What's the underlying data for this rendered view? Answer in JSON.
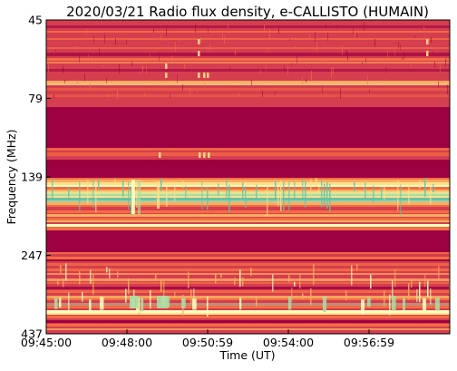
{
  "chart_data": {
    "type": "heatmap",
    "title": "2020/03/21  Radio flux density, e-CALLISTO (HUMAIN)",
    "xlabel": "Time (UT)",
    "ylabel": "Frequency (MHz)",
    "x_ticks": [
      "09:45:00",
      "09:48:00",
      "09:50:59",
      "09:54:00",
      "09:56:59"
    ],
    "y_ticks": [
      "45",
      "79",
      "139",
      "247",
      "437"
    ],
    "colormap": "Spectral",
    "colors": {
      "background_low": "#9e0142",
      "mid_low": "#d53e4f",
      "mid": "#f46d43",
      "warm": "#fdae61",
      "bright": "#fee08b",
      "pale": "#ffffbf",
      "green": "#e6f598",
      "teal": "#abdda4",
      "cyan": "#66c2a5"
    }
  }
}
